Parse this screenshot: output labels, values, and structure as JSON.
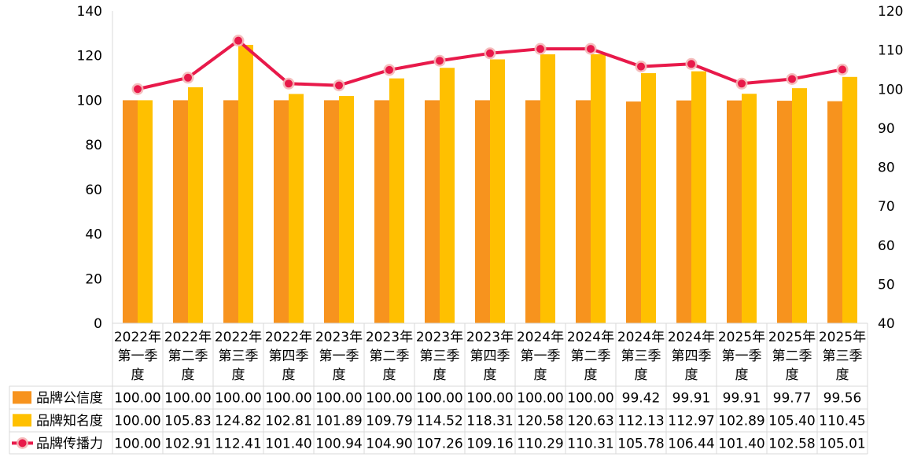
{
  "chart_data": {
    "type": "bar+line",
    "categories": [
      [
        "2022年",
        "第一季",
        "度"
      ],
      [
        "2022年",
        "第二季",
        "度"
      ],
      [
        "2022年",
        "第三季",
        "度"
      ],
      [
        "2022年",
        "第四季",
        "度"
      ],
      [
        "2023年",
        "第一季",
        "度"
      ],
      [
        "2023年",
        "第二季",
        "度"
      ],
      [
        "2023年",
        "第三季",
        "度"
      ],
      [
        "2023年",
        "第四季",
        "度"
      ],
      [
        "2024年",
        "第一季",
        "度"
      ],
      [
        "2024年",
        "第二季",
        "度"
      ],
      [
        "2024年",
        "第三季",
        "度"
      ],
      [
        "2024年",
        "第四季",
        "度"
      ],
      [
        "2025年",
        "第一季",
        "度"
      ],
      [
        "2025年",
        "第二季",
        "度"
      ],
      [
        "2025年",
        "第三季",
        "度"
      ]
    ],
    "series": [
      {
        "name": "品牌公信度",
        "type": "bar",
        "axis": "left",
        "color": "#F7931E",
        "values": [
          100.0,
          100.0,
          100.0,
          100.0,
          100.0,
          100.0,
          100.0,
          100.0,
          100.0,
          100.0,
          99.42,
          99.91,
          99.91,
          99.77,
          99.56
        ]
      },
      {
        "name": "品牌知名度",
        "type": "bar",
        "axis": "left",
        "color": "#FFC000",
        "values": [
          100.0,
          105.83,
          124.82,
          102.81,
          101.89,
          109.79,
          114.52,
          118.31,
          120.58,
          120.63,
          112.13,
          112.97,
          102.89,
          105.4,
          110.45
        ]
      },
      {
        "name": "品牌传播力",
        "type": "line",
        "axis": "right",
        "color": "#E8194A",
        "values": [
          100.0,
          102.91,
          112.41,
          101.4,
          100.94,
          104.9,
          107.26,
          109.16,
          110.29,
          110.31,
          105.78,
          106.44,
          101.4,
          102.58,
          105.01
        ]
      }
    ],
    "y_left": {
      "min": 0,
      "max": 140,
      "ticks": [
        "0",
        "20",
        "40",
        "60",
        "80",
        "100",
        "120",
        "140"
      ]
    },
    "y_right": {
      "min": 40,
      "max": 120,
      "ticks": [
        "40",
        "50",
        "60",
        "70",
        "80",
        "90",
        "100",
        "110",
        "120"
      ]
    },
    "grid": false,
    "legend": "data-table"
  }
}
